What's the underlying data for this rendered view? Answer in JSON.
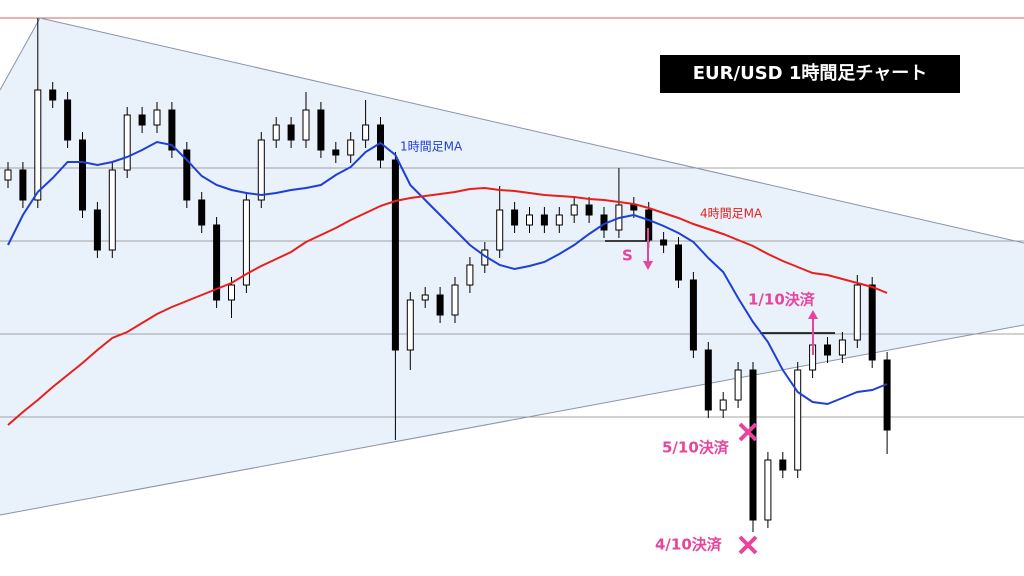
{
  "chart_data": {
    "type": "candlestick",
    "title": "EUR/USD  1時間足チャート",
    "ylim": [
      0,
      576
    ],
    "up_color": "#ffffff",
    "down_color": "#000000",
    "open": [
      396,
      406,
      376,
      486,
      476,
      436,
      366,
      326,
      406,
      461,
      451,
      466,
      426,
      376,
      351,
      276,
      291,
      376,
      436,
      451,
      436,
      466,
      426,
      421,
      436,
      451,
      416,
      226,
      276,
      281,
      261,
      291,
      311,
      326,
      366,
      351,
      361,
      351,
      361,
      371,
      361,
      346,
      371,
      366,
      336,
      331,
      296,
      226,
      166,
      176,
      206,
      56,
      116,
      106,
      206,
      231,
      221,
      236,
      291,
      216
    ],
    "high": [
      414,
      414,
      558,
      494,
      484,
      444,
      374,
      414,
      469,
      469,
      474,
      474,
      434,
      384,
      359,
      299,
      384,
      444,
      459,
      459,
      484,
      474,
      434,
      444,
      476,
      459,
      424,
      284,
      289,
      289,
      299,
      319,
      334,
      390,
      374,
      369,
      369,
      369,
      379,
      379,
      369,
      408,
      379,
      374,
      344,
      339,
      304,
      234,
      184,
      214,
      214,
      124,
      124,
      214,
      239,
      239,
      244,
      301,
      299,
      224
    ],
    "low": [
      388,
      368,
      368,
      468,
      428,
      358,
      318,
      318,
      398,
      443,
      443,
      418,
      368,
      343,
      268,
      258,
      283,
      368,
      428,
      428,
      428,
      418,
      413,
      413,
      428,
      408,
      136,
      206,
      268,
      253,
      253,
      283,
      303,
      318,
      343,
      343,
      343,
      343,
      353,
      353,
      338,
      338,
      358,
      328,
      323,
      288,
      218,
      158,
      158,
      168,
      44,
      48,
      98,
      98,
      198,
      213,
      213,
      228,
      208,
      122
    ],
    "close": [
      406,
      376,
      486,
      476,
      436,
      366,
      326,
      406,
      461,
      451,
      466,
      426,
      376,
      351,
      276,
      291,
      376,
      436,
      451,
      436,
      466,
      426,
      421,
      436,
      451,
      416,
      226,
      276,
      281,
      261,
      291,
      311,
      326,
      366,
      351,
      361,
      351,
      361,
      371,
      361,
      346,
      371,
      366,
      336,
      331,
      296,
      226,
      166,
      176,
      206,
      56,
      116,
      106,
      206,
      231,
      221,
      236,
      291,
      216,
      146
    ],
    "series": [
      {
        "name": "1時間足MA",
        "color": "#1f3fd6",
        "values": [
          331,
          361,
          384,
          398,
          414,
          414,
          411,
          414,
          419,
          426,
          434,
          431,
          416,
          400,
          391,
          386,
          383,
          381,
          383,
          386,
          388,
          391,
          401,
          409,
          424,
          433,
          421,
          391,
          376,
          361,
          346,
          331,
          320,
          311,
          307,
          310,
          314,
          322,
          331,
          342,
          352,
          358,
          361,
          356,
          350,
          343,
          334,
          318,
          304,
          278,
          254,
          234,
          206,
          184,
          174,
          172,
          178,
          184,
          186,
          192
        ]
      },
      {
        "name": "4時間足MA",
        "color": "#e8201c",
        "values": [
          151,
          164,
          176,
          189,
          201,
          213,
          226,
          238,
          244,
          253,
          262,
          269,
          275,
          281,
          287,
          293,
          302,
          310,
          317,
          324,
          334,
          341,
          348,
          356,
          363,
          370,
          375,
          378,
          380,
          382,
          384,
          387,
          388,
          386,
          385,
          383,
          381,
          380,
          379,
          377,
          376,
          374,
          372,
          368,
          363,
          358,
          352,
          347,
          342,
          336,
          330,
          322,
          315,
          309,
          303,
          301,
          297,
          293,
          289,
          283
        ]
      }
    ],
    "annotations": [
      "S",
      "1/10決済",
      "5/10決済",
      "4/10決済"
    ]
  }
}
